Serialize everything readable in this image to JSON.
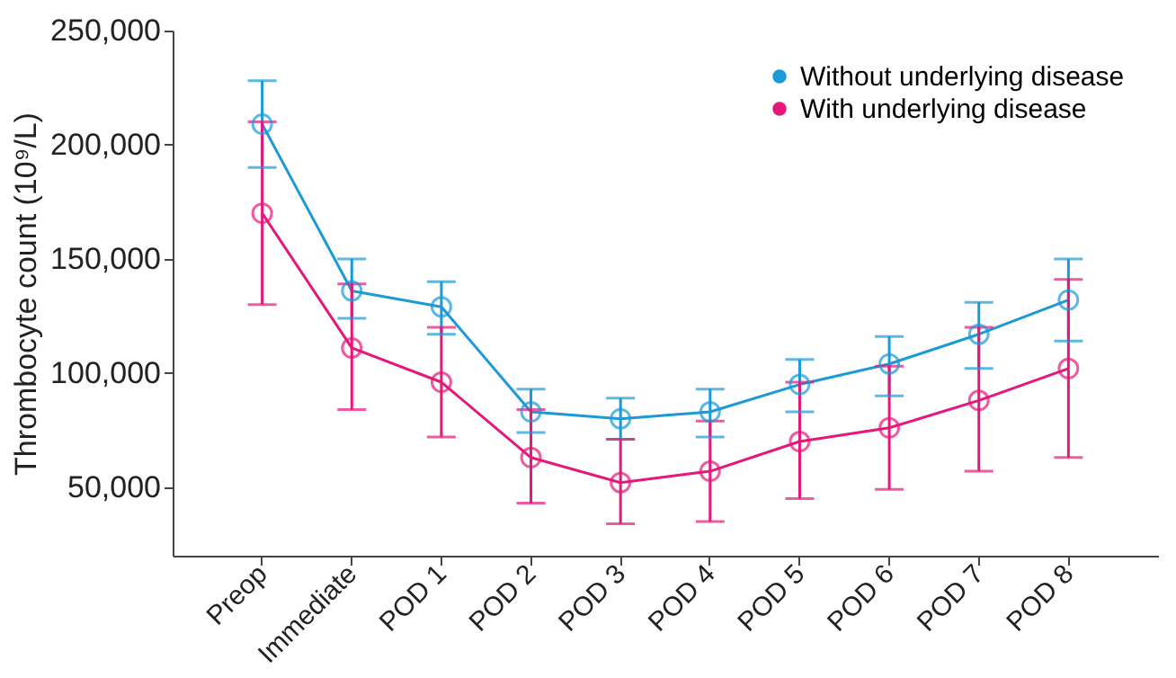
{
  "chart_data": {
    "type": "line",
    "ylabel": "Thrombocyte count (10⁹/L)",
    "categories": [
      "Preop",
      "Immediate",
      "POD 1",
      "POD 2",
      "POD 3",
      "POD 4",
      "POD 5",
      "POD 6",
      "POD 7",
      "POD 8"
    ],
    "series": [
      {
        "name": "Without underlying disease",
        "color": "#1a9ad6",
        "values": [
          209000,
          136000,
          129000,
          83000,
          80000,
          83000,
          95000,
          104000,
          117000,
          132000
        ],
        "errors": [
          [
            190000,
            228000
          ],
          [
            124000,
            150000
          ],
          [
            117000,
            140000
          ],
          [
            74000,
            93000
          ],
          [
            71000,
            89000
          ],
          [
            72000,
            93000
          ],
          [
            83000,
            106000
          ],
          [
            90000,
            116000
          ],
          [
            102000,
            131000
          ],
          [
            114000,
            150000
          ]
        ]
      },
      {
        "name": "With underlying disease",
        "color": "#e6177a",
        "values": [
          170000,
          111000,
          96000,
          63000,
          52000,
          57000,
          70000,
          76000,
          88000,
          102000
        ],
        "errors": [
          [
            130000,
            210000
          ],
          [
            84000,
            139000
          ],
          [
            72000,
            120000
          ],
          [
            43000,
            84000
          ],
          [
            34000,
            71000
          ],
          [
            35000,
            79000
          ],
          [
            45000,
            96000
          ],
          [
            49000,
            103000
          ],
          [
            57000,
            120000
          ],
          [
            63000,
            141000
          ]
        ]
      }
    ],
    "ylim": [
      20000,
      250000
    ],
    "yticks": [
      {
        "value": 50000,
        "label": "50,000"
      },
      {
        "value": 100000,
        "label": "100,000"
      },
      {
        "value": 150000,
        "label": "150,000"
      },
      {
        "value": 200000,
        "label": "200,000"
      },
      {
        "value": 250000,
        "label": "250,000"
      }
    ],
    "marker": "circle",
    "line_style": "solid",
    "legend": "top right",
    "grid": false
  }
}
